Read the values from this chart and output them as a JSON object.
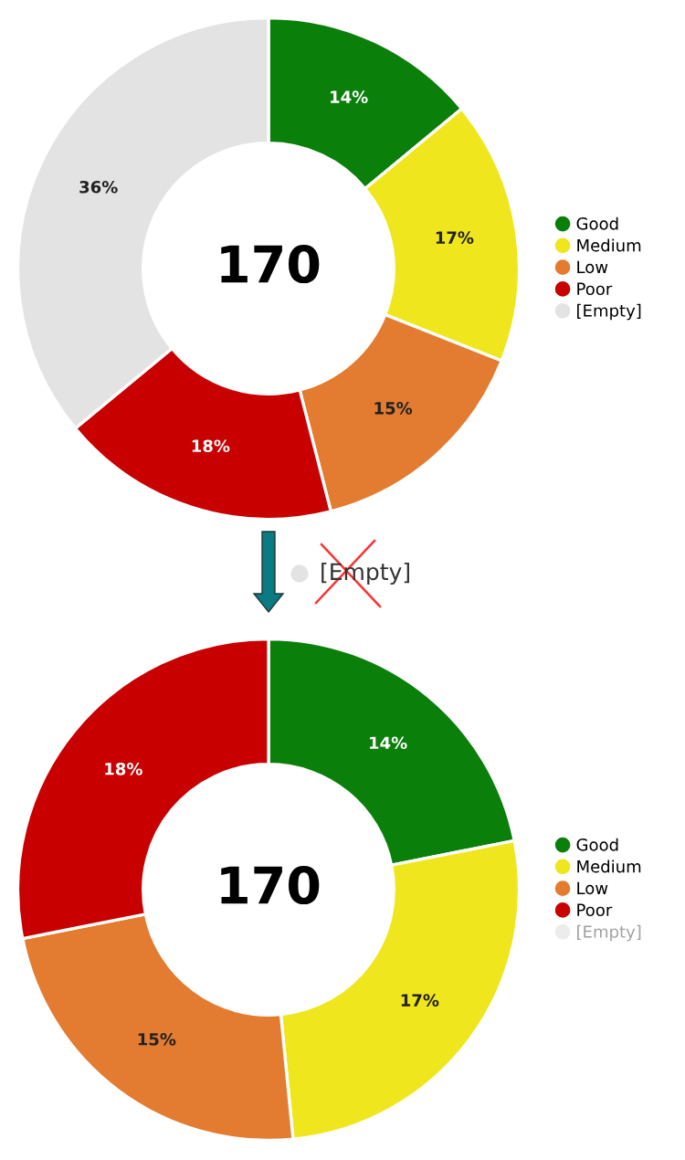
{
  "chart_data": [
    {
      "type": "donut",
      "categories": [
        "Good",
        "Medium",
        "Low",
        "Poor",
        "[Empty]"
      ],
      "values": [
        14,
        17,
        15,
        18,
        36
      ],
      "colors": [
        "#0a7f0a",
        "#f0e61e",
        "#e37b30",
        "#c80000",
        "#e3e3e3"
      ],
      "value_labels": [
        "14%",
        "17%",
        "15%",
        "18%",
        "36%"
      ],
      "annotations": [
        "170",
        "[Empty]"
      ],
      "legend": "right"
    },
    {
      "type": "donut",
      "categories": [
        "Good",
        "Medium",
        "Low",
        "Poor",
        "[Empty]"
      ],
      "values": [
        14,
        17,
        15,
        18,
        null
      ],
      "colors": [
        "#0a7f0a",
        "#f0e61e",
        "#e37b30",
        "#c80000",
        "#ececec"
      ],
      "value_labels": [
        "14%",
        "17%",
        "15%",
        "18%",
        null
      ],
      "annotations": [
        "170"
      ],
      "legend": "right"
    }
  ]
}
